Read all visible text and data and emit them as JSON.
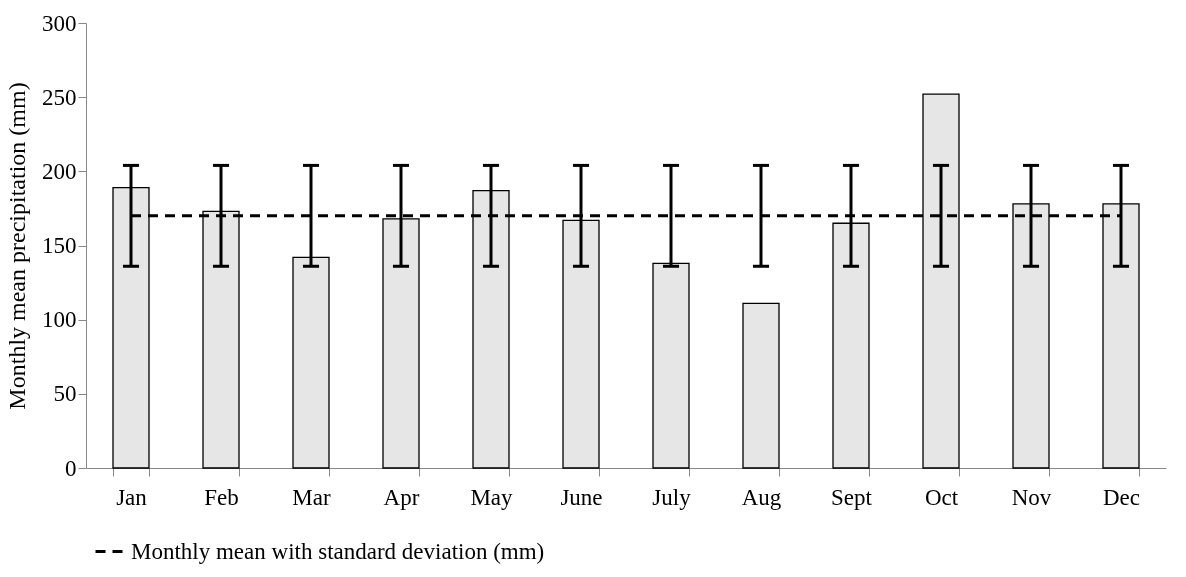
{
  "chart_data": {
    "type": "bar",
    "ylabel": "Monthly mean precipitation (mm)",
    "categories": [
      "Jan",
      "Feb",
      "Mar",
      "Apr",
      "May",
      "June",
      "July",
      "Aug",
      "Sept",
      "Oct",
      "Nov",
      "Dec"
    ],
    "series": [
      {
        "type": "bar",
        "color": "#e6e6e6",
        "values": [
          189,
          173,
          142,
          168,
          187,
          167,
          138,
          111,
          165,
          252,
          178,
          178
        ]
      },
      {
        "type": "line",
        "name": "Monthly mean with standard deviation (mm)",
        "color": "#000000",
        "line_style": "dashed",
        "values": [
          170,
          170,
          170,
          170,
          170,
          170,
          170,
          170,
          170,
          170,
          170,
          170
        ],
        "errors": [
          34,
          34,
          34,
          34,
          34,
          34,
          34,
          34,
          34,
          34,
          34,
          34
        ]
      }
    ],
    "ylim": [
      0,
      300
    ],
    "yticks": [
      0,
      50,
      100,
      150,
      200,
      250,
      300
    ],
    "grid": false,
    "legend": "bottom"
  }
}
